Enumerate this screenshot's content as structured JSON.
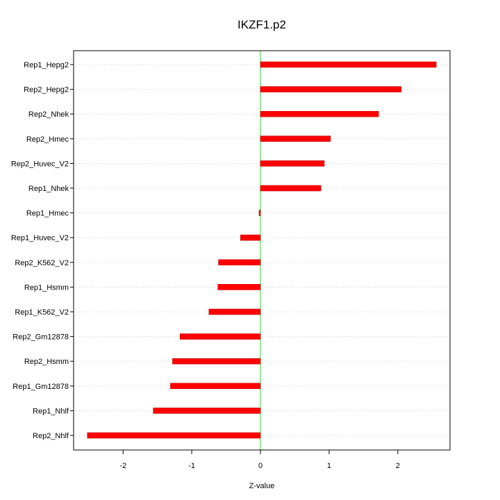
{
  "chart_data": {
    "type": "bar",
    "orientation": "horizontal",
    "title": "IKZF1.p2",
    "xlabel": "Z-value",
    "ylabel": "",
    "xlim": [
      -2.72,
      2.76
    ],
    "xticks": [
      -2,
      -1,
      0,
      1,
      2
    ],
    "reference_line": 0,
    "grid": "horizontal dotted",
    "colors": {
      "bar": "#ff0000",
      "bar_edge": "#c00000",
      "zero_line": "#33cc33",
      "grid": "#c8c8c8",
      "axis": "#000000"
    },
    "categories": [
      "Rep1_Hepg2",
      "Rep2_Hepg2",
      "Rep2_Nhek",
      "Rep2_Hmec",
      "Rep2_Huvec_V2",
      "Rep1_Nhek",
      "Rep1_Hmec",
      "Rep1_Huvec_V2",
      "Rep2_K562_V2",
      "Rep1_Hsmm",
      "Rep1_K562_V2",
      "Rep2_Gm12878",
      "Rep2_Hsmm",
      "Rep1_Gm12878",
      "Rep1_Nhlf",
      "Rep2_Nhlf"
    ],
    "values": [
      2.56,
      2.05,
      1.72,
      1.02,
      0.93,
      0.88,
      -0.02,
      -0.29,
      -0.61,
      -0.62,
      -0.75,
      -1.17,
      -1.28,
      -1.31,
      -1.56,
      -2.52
    ]
  }
}
